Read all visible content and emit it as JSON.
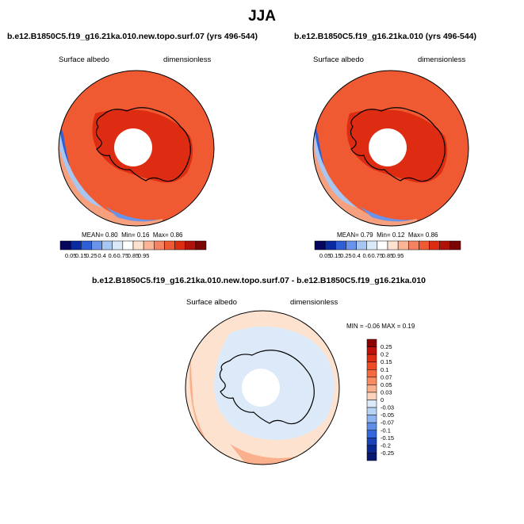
{
  "figure_title": "JJA",
  "panels": [
    {
      "title": "b.e12.B1850C5.f19_g16.21ka.010.new.topo.surf.07 (yrs 496-544)",
      "variable": "Surface albedo",
      "units": "dimensionless",
      "stats": {
        "mean_label": "MEAN=",
        "mean": "0.80",
        "min_label": "Min=",
        "min": "0.16",
        "max_label": "Max=",
        "max": "0.86"
      }
    },
    {
      "title": "b.e12.B1850C5.f19_g16.21ka.010 (yrs 496-544)",
      "variable": "Surface albedo",
      "units": "dimensionless",
      "stats": {
        "mean_label": "MEAN=",
        "mean": "0.79",
        "min_label": "Min=",
        "min": "0.12",
        "max_label": "Max=",
        "max": "0.86"
      }
    },
    {
      "title": "b.e12.B1850C5.f19_g16.21ka.010.new.topo.surf.07 - b.e12.B1850C5.f19_g16.21ka.010",
      "variable": "Surface albedo",
      "units": "dimensionless",
      "stats_text": "MIN =  -0.06 MAX =  0.19"
    }
  ],
  "chart_data": [
    {
      "type": "heatmap",
      "projection": "south polar stereographic",
      "title": "b.e12.B1850C5.f19_g16.21ka.010.new.topo.surf.07 (yrs 496-544)",
      "variable": "Surface albedo",
      "units": "dimensionless",
      "mean": 0.8,
      "min": 0.16,
      "max": 0.86,
      "colorbar_ticks": [
        "0.05",
        "0.15",
        "0.25",
        "0.4",
        "0.6",
        "0.75",
        "0.85",
        "0.95"
      ],
      "colorbar_colors": [
        "#06065e",
        "#0b2aa0",
        "#2e5fd6",
        "#6a93ea",
        "#a8c6f2",
        "#dbe8f7",
        "#ffffff",
        "#fde3cf",
        "#f9b596",
        "#f58262",
        "#ef5a32",
        "#dd2c12",
        "#b0120a",
        "#7a0505"
      ]
    },
    {
      "type": "heatmap",
      "projection": "south polar stereographic",
      "title": "b.e12.B1850C5.f19_g16.21ka.010 (yrs 496-544)",
      "variable": "Surface albedo",
      "units": "dimensionless",
      "mean": 0.79,
      "min": 0.12,
      "max": 0.86,
      "colorbar_ticks": [
        "0.05",
        "0.15",
        "0.25",
        "0.4",
        "0.6",
        "0.75",
        "0.85",
        "0.95"
      ],
      "colorbar_colors": [
        "#06065e",
        "#0b2aa0",
        "#2e5fd6",
        "#6a93ea",
        "#a8c6f2",
        "#dbe8f7",
        "#ffffff",
        "#fde3cf",
        "#f9b596",
        "#f58262",
        "#ef5a32",
        "#dd2c12",
        "#b0120a",
        "#7a0505"
      ]
    },
    {
      "type": "heatmap",
      "projection": "south polar stereographic",
      "title": "b.e12.B1850C5.f19_g16.21ka.010.new.topo.surf.07 - b.e12.B1850C5.f19_g16.21ka.010",
      "variable": "Surface albedo",
      "units": "dimensionless",
      "min": -0.06,
      "max": 0.19,
      "colorbar_ticks": [
        "0.25",
        "0.2",
        "0.15",
        "0.1",
        "0.07",
        "0.05",
        "0.03",
        "0",
        "-0.03",
        "-0.05",
        "-0.07",
        "-0.1",
        "-0.15",
        "-0.2",
        "-0.25"
      ],
      "colorbar_colors": [
        "#8b0000",
        "#c0110a",
        "#de2d12",
        "#ee4a24",
        "#f56a40",
        "#f88b62",
        "#fab08d",
        "#fdd3bd",
        "#dbe9f8",
        "#b8d4f5",
        "#8cb4ee",
        "#5e8ee6",
        "#3366d9",
        "#1a44b8",
        "#0b2890",
        "#081a70"
      ]
    }
  ]
}
